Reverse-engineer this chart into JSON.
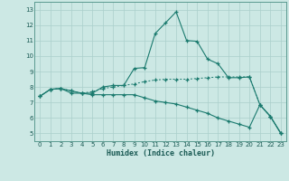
{
  "xlabel": "Humidex (Indice chaleur)",
  "bg_color": "#cce8e4",
  "plot_bg_color": "#cce8e4",
  "grid_color": "#aacfcb",
  "line_color": "#1a7a6e",
  "xlim": [
    -0.5,
    23.5
  ],
  "ylim": [
    4.5,
    13.5
  ],
  "xticks": [
    0,
    1,
    2,
    3,
    4,
    5,
    6,
    7,
    8,
    9,
    10,
    11,
    12,
    13,
    14,
    15,
    16,
    17,
    18,
    19,
    20,
    21,
    22,
    23
  ],
  "yticks": [
    5,
    6,
    7,
    8,
    9,
    10,
    11,
    12,
    13
  ],
  "line1_x": [
    0,
    1,
    2,
    3,
    4,
    5,
    6,
    7,
    8,
    9,
    10,
    11,
    12,
    13,
    14,
    15,
    16,
    17,
    18,
    19,
    20,
    21,
    22,
    23
  ],
  "line1_y": [
    7.4,
    7.85,
    7.9,
    7.75,
    7.6,
    7.6,
    8.0,
    8.1,
    8.1,
    9.2,
    9.25,
    11.45,
    12.15,
    12.85,
    11.0,
    10.95,
    9.8,
    9.5,
    8.6,
    8.6,
    8.65,
    6.85,
    6.1,
    5.0
  ],
  "line2_x": [
    0,
    1,
    2,
    3,
    4,
    5,
    6,
    7,
    8,
    9,
    10,
    11,
    12,
    13,
    14,
    15,
    16,
    17,
    18,
    19,
    20,
    21,
    22,
    23
  ],
  "line2_y": [
    7.4,
    7.85,
    7.9,
    7.75,
    7.6,
    7.7,
    7.9,
    8.0,
    8.1,
    8.2,
    8.35,
    8.45,
    8.5,
    8.5,
    8.5,
    8.55,
    8.6,
    8.65,
    8.65,
    8.65,
    8.65,
    6.85,
    6.1,
    5.0
  ],
  "line3_x": [
    0,
    1,
    2,
    3,
    4,
    5,
    6,
    7,
    8,
    9,
    10,
    11,
    12,
    13,
    14,
    15,
    16,
    17,
    18,
    19,
    20,
    21,
    22,
    23
  ],
  "line3_y": [
    7.4,
    7.85,
    7.9,
    7.6,
    7.6,
    7.5,
    7.5,
    7.5,
    7.5,
    7.5,
    7.3,
    7.1,
    7.0,
    6.9,
    6.7,
    6.5,
    6.3,
    6.0,
    5.8,
    5.6,
    5.4,
    6.85,
    6.1,
    5.0
  ]
}
